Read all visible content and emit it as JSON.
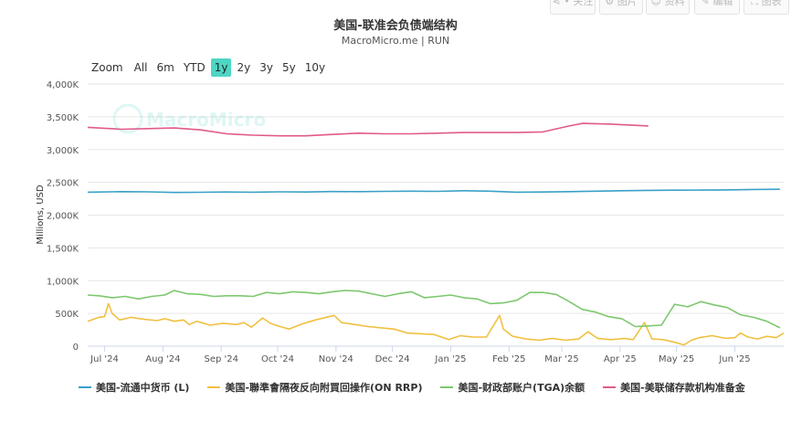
{
  "toolbar": {
    "buttons": [
      {
        "label": "• 关注",
        "icon": "share-icon"
      },
      {
        "label": "图片",
        "icon": "gear-icon"
      },
      {
        "label": "资料",
        "icon": "user-icon"
      },
      {
        "label": "编辑",
        "icon": "pencil-icon"
      },
      {
        "label": "图表",
        "icon": "expand-icon"
      }
    ]
  },
  "range_selector": {
    "zoom_label": "Zoom",
    "options": [
      "All",
      "6m",
      "YTD",
      "1y",
      "2y",
      "3y",
      "5y",
      "10y"
    ],
    "selected": "1y"
  },
  "watermark": "MacroMicro",
  "colors": {
    "currency": "#3aa0c8",
    "onrrp": "#f0c040",
    "tga": "#7cc86e",
    "reserves": "#e05a8a",
    "watermark": "#4ed6c4"
  },
  "chart_data": {
    "type": "line",
    "title": "美国-联准会负债端结构",
    "subtitle": "MacroMicro.me | RUN",
    "ylabel": "Millions, USD",
    "ylim": [
      0,
      4000000
    ],
    "y_ticks": [
      0,
      500000,
      1000000,
      1500000,
      2000000,
      2500000,
      3000000,
      3500000,
      4000000
    ],
    "y_tick_labels": [
      "0",
      "500K",
      "1,000K",
      "1,500K",
      "2,000K",
      "2,500K",
      "3,000K",
      "3,500K",
      "4,000K"
    ],
    "xlim": [
      "2024-06-22",
      "2025-06-27"
    ],
    "x_ticks": [
      "2024-07-01",
      "2024-08-01",
      "2024-09-01",
      "2024-10-01",
      "2024-11-01",
      "2024-12-01",
      "2025-01-01",
      "2025-02-01",
      "2025-03-01",
      "2025-04-01",
      "2025-05-01",
      "2025-06-01"
    ],
    "x_tick_labels": [
      "Jul '24",
      "Aug '24",
      "Sep '24",
      "Oct '24",
      "Nov '24",
      "Dec '24",
      "Jan '25",
      "Feb '25",
      "Mar '25",
      "Apr '25",
      "May '25",
      "Jun '25"
    ],
    "grid": true,
    "legend_position": "bottom",
    "series": [
      {
        "name": "美国-流通中货币 (L)",
        "color_key": "currency",
        "points": [
          [
            "2024-06-22",
            2350000
          ],
          [
            "2024-07-10",
            2358000
          ],
          [
            "2024-07-24",
            2355000
          ],
          [
            "2024-08-07",
            2345000
          ],
          [
            "2024-08-21",
            2348000
          ],
          [
            "2024-09-04",
            2352000
          ],
          [
            "2024-09-18",
            2350000
          ],
          [
            "2024-10-02",
            2355000
          ],
          [
            "2024-10-16",
            2352000
          ],
          [
            "2024-10-30",
            2360000
          ],
          [
            "2024-11-13",
            2358000
          ],
          [
            "2024-11-27",
            2362000
          ],
          [
            "2024-12-11",
            2365000
          ],
          [
            "2024-12-25",
            2362000
          ],
          [
            "2025-01-08",
            2372000
          ],
          [
            "2025-01-22",
            2365000
          ],
          [
            "2025-02-05",
            2350000
          ],
          [
            "2025-02-19",
            2352000
          ],
          [
            "2025-03-05",
            2358000
          ],
          [
            "2025-03-19",
            2365000
          ],
          [
            "2025-04-02",
            2372000
          ],
          [
            "2025-04-16",
            2378000
          ],
          [
            "2025-04-30",
            2380000
          ],
          [
            "2025-05-14",
            2382000
          ],
          [
            "2025-05-28",
            2385000
          ],
          [
            "2025-06-11",
            2392000
          ],
          [
            "2025-06-25",
            2395000
          ]
        ]
      },
      {
        "name": "美国-聯準會隔夜反向附買回操作(ON RRP)",
        "color_key": "onrrp",
        "points": [
          [
            "2024-06-22",
            380000
          ],
          [
            "2024-06-28",
            440000
          ],
          [
            "2024-07-01",
            450000
          ],
          [
            "2024-07-03",
            650000
          ],
          [
            "2024-07-05",
            500000
          ],
          [
            "2024-07-09",
            400000
          ],
          [
            "2024-07-15",
            440000
          ],
          [
            "2024-07-22",
            410000
          ],
          [
            "2024-07-29",
            390000
          ],
          [
            "2024-08-02",
            420000
          ],
          [
            "2024-08-07",
            380000
          ],
          [
            "2024-08-12",
            400000
          ],
          [
            "2024-08-15",
            330000
          ],
          [
            "2024-08-19",
            380000
          ],
          [
            "2024-08-26",
            320000
          ],
          [
            "2024-09-02",
            350000
          ],
          [
            "2024-09-09",
            330000
          ],
          [
            "2024-09-13",
            360000
          ],
          [
            "2024-09-17",
            290000
          ],
          [
            "2024-09-23",
            430000
          ],
          [
            "2024-09-27",
            350000
          ],
          [
            "2024-09-30",
            320000
          ],
          [
            "2024-10-07",
            260000
          ],
          [
            "2024-10-14",
            340000
          ],
          [
            "2024-10-21",
            400000
          ],
          [
            "2024-10-31",
            470000
          ],
          [
            "2024-11-04",
            360000
          ],
          [
            "2024-11-11",
            330000
          ],
          [
            "2024-11-18",
            300000
          ],
          [
            "2024-11-25",
            280000
          ],
          [
            "2024-12-02",
            260000
          ],
          [
            "2024-12-09",
            200000
          ],
          [
            "2024-12-16",
            190000
          ],
          [
            "2024-12-23",
            180000
          ],
          [
            "2024-12-31",
            100000
          ],
          [
            "2025-01-06",
            160000
          ],
          [
            "2025-01-13",
            140000
          ],
          [
            "2025-01-20",
            140000
          ],
          [
            "2025-01-27",
            470000
          ],
          [
            "2025-01-29",
            260000
          ],
          [
            "2025-02-03",
            150000
          ],
          [
            "2025-02-10",
            110000
          ],
          [
            "2025-02-17",
            90000
          ],
          [
            "2025-02-24",
            120000
          ],
          [
            "2025-03-03",
            90000
          ],
          [
            "2025-03-10",
            110000
          ],
          [
            "2025-03-15",
            220000
          ],
          [
            "2025-03-20",
            120000
          ],
          [
            "2025-03-27",
            100000
          ],
          [
            "2025-04-01",
            110000
          ],
          [
            "2025-04-03",
            120000
          ],
          [
            "2025-04-08",
            100000
          ],
          [
            "2025-04-14",
            360000
          ],
          [
            "2025-04-18",
            110000
          ],
          [
            "2025-04-24",
            100000
          ],
          [
            "2025-04-30",
            60000
          ],
          [
            "2025-05-05",
            20000
          ],
          [
            "2025-05-09",
            90000
          ],
          [
            "2025-05-13",
            130000
          ],
          [
            "2025-05-20",
            160000
          ],
          [
            "2025-05-27",
            120000
          ],
          [
            "2025-06-01",
            130000
          ],
          [
            "2025-06-04",
            200000
          ],
          [
            "2025-06-08",
            140000
          ],
          [
            "2025-06-13",
            110000
          ],
          [
            "2025-06-18",
            150000
          ],
          [
            "2025-06-23",
            130000
          ],
          [
            "2025-06-27",
            200000
          ]
        ]
      },
      {
        "name": "美国-财政部账户(TGA)余额",
        "color_key": "tga",
        "points": [
          [
            "2024-06-22",
            780000
          ],
          [
            "2024-06-28",
            770000
          ],
          [
            "2024-07-05",
            740000
          ],
          [
            "2024-07-12",
            760000
          ],
          [
            "2024-07-19",
            720000
          ],
          [
            "2024-07-26",
            760000
          ],
          [
            "2024-08-02",
            780000
          ],
          [
            "2024-08-07",
            850000
          ],
          [
            "2024-08-14",
            800000
          ],
          [
            "2024-08-21",
            790000
          ],
          [
            "2024-08-28",
            760000
          ],
          [
            "2024-09-04",
            770000
          ],
          [
            "2024-09-11",
            770000
          ],
          [
            "2024-09-18",
            760000
          ],
          [
            "2024-09-25",
            820000
          ],
          [
            "2024-10-02",
            800000
          ],
          [
            "2024-10-09",
            830000
          ],
          [
            "2024-10-16",
            820000
          ],
          [
            "2024-10-23",
            800000
          ],
          [
            "2024-10-30",
            830000
          ],
          [
            "2024-11-06",
            850000
          ],
          [
            "2024-11-13",
            840000
          ],
          [
            "2024-11-20",
            800000
          ],
          [
            "2024-11-27",
            760000
          ],
          [
            "2024-12-04",
            800000
          ],
          [
            "2024-12-11",
            830000
          ],
          [
            "2024-12-18",
            740000
          ],
          [
            "2024-12-25",
            760000
          ],
          [
            "2025-01-01",
            780000
          ],
          [
            "2025-01-08",
            740000
          ],
          [
            "2025-01-15",
            720000
          ],
          [
            "2025-01-22",
            650000
          ],
          [
            "2025-01-29",
            660000
          ],
          [
            "2025-02-05",
            700000
          ],
          [
            "2025-02-12",
            820000
          ],
          [
            "2025-02-19",
            820000
          ],
          [
            "2025-02-26",
            790000
          ],
          [
            "2025-03-05",
            680000
          ],
          [
            "2025-03-12",
            560000
          ],
          [
            "2025-03-19",
            520000
          ],
          [
            "2025-03-26",
            450000
          ],
          [
            "2025-04-02",
            420000
          ],
          [
            "2025-04-09",
            300000
          ],
          [
            "2025-04-16",
            310000
          ],
          [
            "2025-04-23",
            320000
          ],
          [
            "2025-04-30",
            640000
          ],
          [
            "2025-05-07",
            600000
          ],
          [
            "2025-05-14",
            680000
          ],
          [
            "2025-05-21",
            630000
          ],
          [
            "2025-05-28",
            590000
          ],
          [
            "2025-06-04",
            480000
          ],
          [
            "2025-06-11",
            440000
          ],
          [
            "2025-06-18",
            380000
          ],
          [
            "2025-06-25",
            280000
          ]
        ]
      },
      {
        "name": "美国-美联储存款机构准备金",
        "color_key": "reserves",
        "points": [
          [
            "2024-06-22",
            3340000
          ],
          [
            "2024-07-10",
            3310000
          ],
          [
            "2024-07-24",
            3320000
          ],
          [
            "2024-08-07",
            3330000
          ],
          [
            "2024-08-21",
            3300000
          ],
          [
            "2024-09-04",
            3240000
          ],
          [
            "2024-09-18",
            3220000
          ],
          [
            "2024-10-02",
            3210000
          ],
          [
            "2024-10-16",
            3210000
          ],
          [
            "2024-10-30",
            3230000
          ],
          [
            "2024-11-13",
            3250000
          ],
          [
            "2024-11-27",
            3240000
          ],
          [
            "2024-12-11",
            3240000
          ],
          [
            "2024-12-25",
            3250000
          ],
          [
            "2025-01-08",
            3260000
          ],
          [
            "2025-01-22",
            3260000
          ],
          [
            "2025-02-05",
            3260000
          ],
          [
            "2025-02-19",
            3270000
          ],
          [
            "2025-03-05",
            3360000
          ],
          [
            "2025-03-12",
            3400000
          ],
          [
            "2025-03-26",
            3390000
          ],
          [
            "2025-04-09",
            3370000
          ],
          [
            "2025-04-16",
            3360000
          ]
        ]
      }
    ]
  }
}
